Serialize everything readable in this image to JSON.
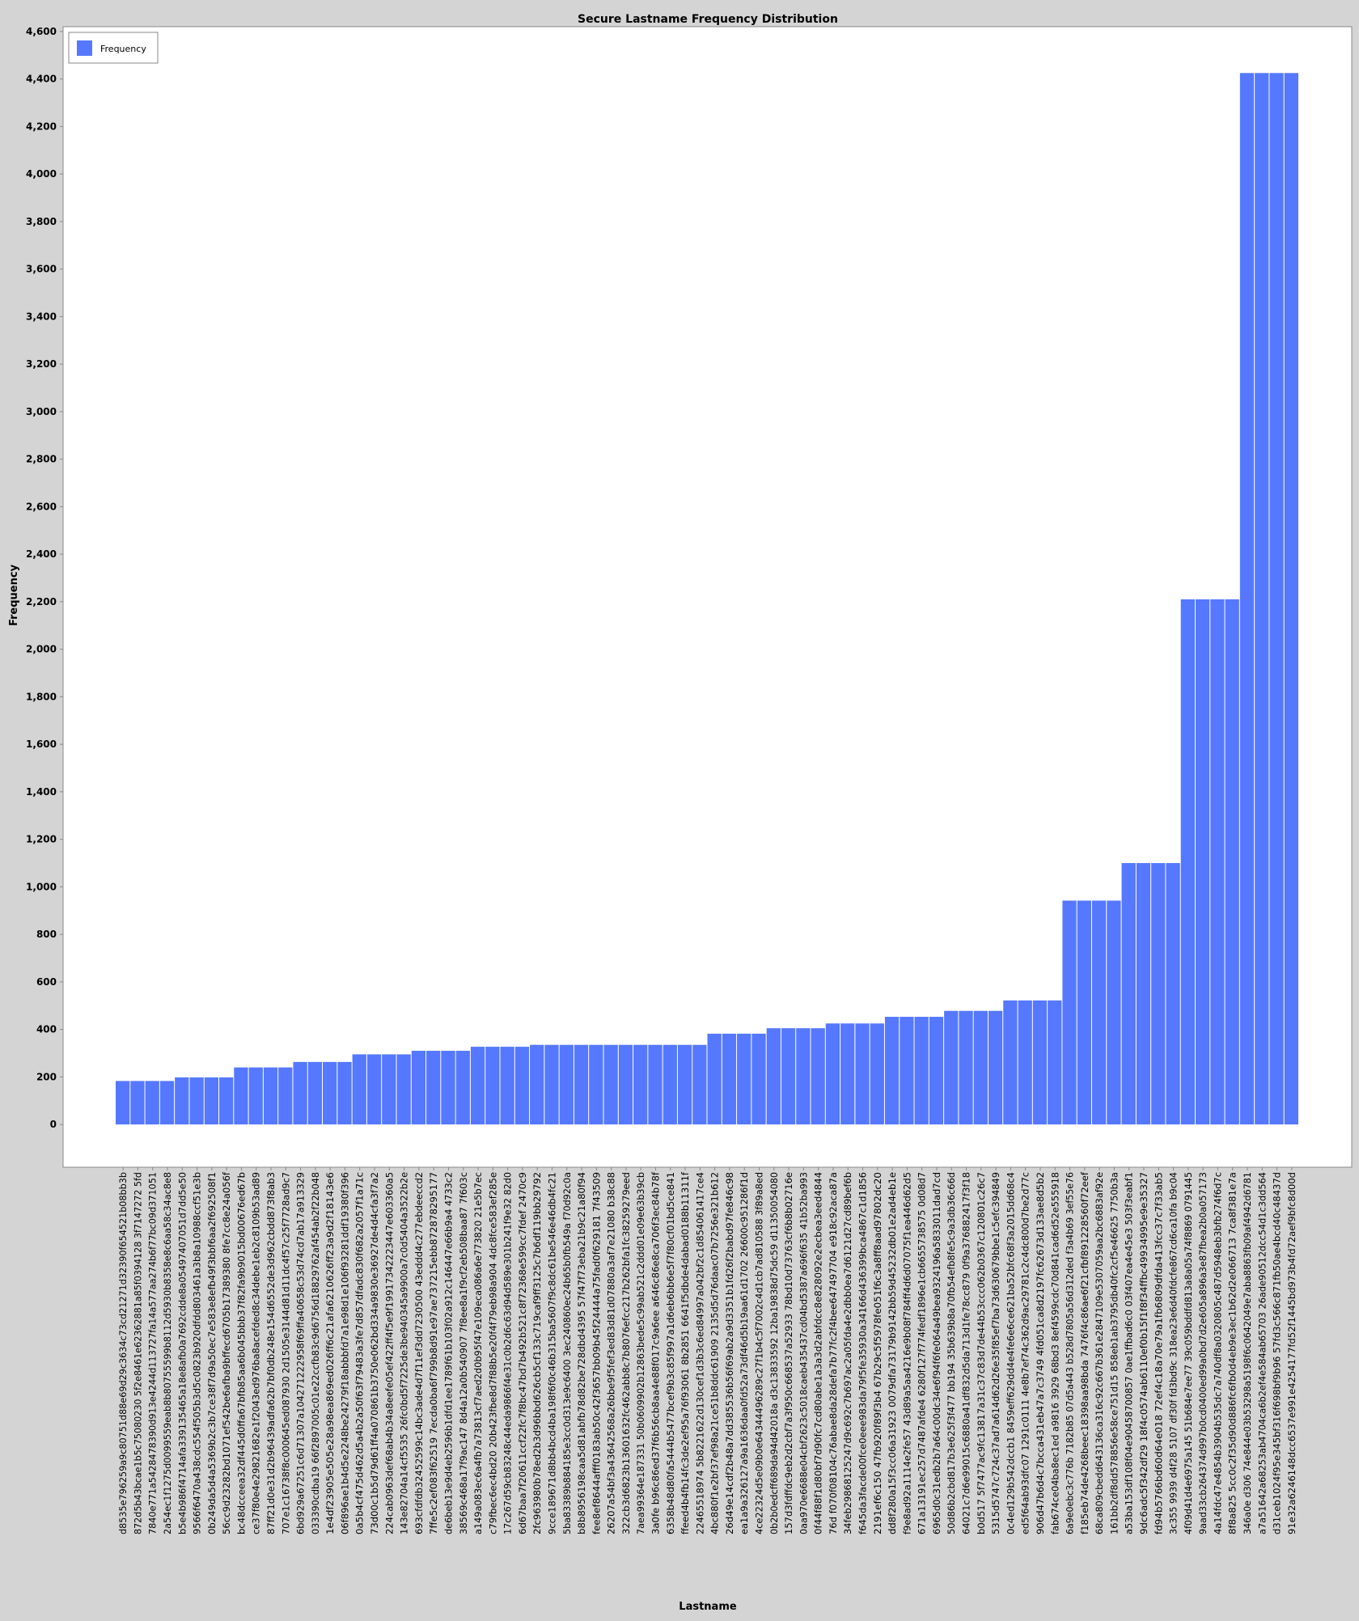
{
  "colors": {
    "background": "#d4d4d4",
    "plot_background": "#ffffff",
    "bar": "#5578ff",
    "axis": "#888888",
    "text": "#000000"
  },
  "chart_data": {
    "type": "bar",
    "title": "Secure Lastname Frequency Distribution",
    "xlabel": "Lastname",
    "ylabel": "Frequency",
    "ylim": [
      -180,
      4620
    ],
    "yticks": [
      0,
      200,
      400,
      600,
      800,
      1000,
      1200,
      1400,
      1600,
      1800,
      2000,
      2200,
      2400,
      2600,
      2800,
      3000,
      3200,
      3400,
      3600,
      3800,
      4000,
      4200,
      4400,
      4600
    ],
    "ytick_labels": [
      "0",
      "200",
      "400",
      "600",
      "800",
      "1,000",
      "1,200",
      "1,400",
      "1,600",
      "1,800",
      "2,000",
      "2,200",
      "2,400",
      "2,600",
      "2,800",
      "3,000",
      "3,200",
      "3,400",
      "3,600",
      "3,800",
      "4,000",
      "4,200",
      "4,400",
      "4,600"
    ],
    "grid": false,
    "legend": {
      "position": "top-left",
      "entries": [
        "Frequency"
      ]
    },
    "series": [
      {
        "name": "Frequency",
        "values": [
          183,
          183,
          183,
          183,
          198,
          198,
          198,
          198,
          240,
          240,
          240,
          240,
          263,
          263,
          263,
          263,
          295,
          295,
          295,
          295,
          310,
          310,
          310,
          310,
          327,
          327,
          327,
          327,
          335,
          335,
          335,
          335,
          335,
          335,
          335,
          335,
          335,
          335,
          335,
          335,
          382,
          382,
          382,
          382,
          405,
          405,
          405,
          405,
          425,
          425,
          425,
          425,
          453,
          453,
          453,
          453,
          478,
          478,
          478,
          478,
          522,
          522,
          522,
          522,
          942,
          942,
          942,
          942,
          1100,
          1100,
          1100,
          1100,
          2210,
          2210,
          2210,
          2210,
          4425,
          4425,
          4425,
          4425
        ]
      }
    ],
    "categories": [
      "d8535e796259a9c80751d88e69d29c3634c73cd21271d32390f654521b08bb3b",
      "872d5b43bcae1b5c75080230 5f2e8461e62362881a85f0394128 3f7147272 5fd",
      "7840e771a5428478390d913e4244d113727fa14a577aa274b6f77bc09d371051",
      "2a54ec1f1275d0099559eab8b80755599b8112d5930b8358e8c6aa58c34ac8e8",
      "b5e4b986f4714afa339135465a18e8afb0a7692cdde8a05497407051d7dd5e50",
      "9566f6470a438cdc554f505b3d5c0823b920dfdd803461a3b8a10988ccf51e3b",
      "0b249da5d4a5369b2c3b7ce38f7d9a50ec7e583e8efb49f3bbf6aa2f692508f1",
      "56cc9d23282bd1071ef542be6afba9bffecd6705b17389380 8fe7cc8e24a056f",
      "bc48dcceea32df445d0ffa67bfb85aa6b045bbb37f82fa9b9015bd00676ed67b",
      "ce37f80e4e29821682e1f2043ed976ba8acefded8c34debe1eb2c8109b53ad89",
      "87ff21d0e31d2b96439adfa62b7bf0db248e154d6552de3d962cbdd873f8ab3",
      "707e1c16738f8c000645ed087930 2d1505e3144d81d11dc4f57c25f7728ad9c7",
      "6bd929a67251c6d71307a104271222958f69ffa40658c53d74cd7ab17a913329",
      "033390cdba19 66f2897005c01e22ccfb83c9d6756d18829762af454ab2f22b048",
      "1e4df23905e505e28a98ea869ed026ff6c21afa6210626ff23a9d2f18143e6",
      "06f896ae1b4d5e2248be24279f18abbbfd7a1e98d1e106f93281ddf19380f396",
      "0a5b4cf475d462d5a4b2a50f63f79483a3fe7d857dfadc830f682a2057f1a71c",
      "73d00c1b5d79d61ff4a070861b3750e062bd334a9830e36927de4d4cfa3f7a2",
      "224cab0963def68ab4b34a8eefe05ef422ff4f5e9f19917342223447e603360a5",
      "143e82704a14cf5535 26fc0bd5f7225de3be940345a9900a7c0d5404a3522b2e",
      "693cfdfdb32452599c14bc3ade4d7f11ef3dd7230500 43eddd4c277ebdeeccd2",
      "7ffe5c2ef083f62519 7ecda0ba6f799b8d91e97ae737215ebb872878295177",
      "de6beb13e9d4eb2596b1dfd1ee1789f61b103f02a912c146447e66b9a4 4733c2",
      "38569c468a17f9ac147 8d4a12a0b540907 7f8ee8a1f9cf2eb508baa87 7f603c",
      "a149a083ec6a4fb7a73813cf7aed2d0b95f47e109eca086a6e773820 21e5b7ec",
      "c79fbec6ec4bd20 20b423fbe8d7f88b5e20f4f79eb98a904 4dc8fce583ef285e",
      "17c267d59cb83248c44eda9866f4e31c0b2d6c63d94d589e301b241f9e32 82d0",
      "6d67baa7f20611ccf22fc7f8bc47bd7b492b521c8f72368e599cc7fdef 2470c9",
      "2fc963980b78ed2b3d96bbd626cb5cf133c719caf9ff3125c7b6df119bb29792",
      "9cce189671d8bb4bcd4ba198f6f0c46b315ba5607f9c8dc61be546e46db4fc21",
      "5ba83389b884185e3cc0d313e9c6400 3ec240860ec24b65b0fb549a f70d92c0a",
      "b8b8956198caa5d81abfb78d82be728dbd4395 57f47f73eba21b9c21a80f94",
      "fee8ef8644afff0183ab50c42f3657bb09b45f24444a75fad0f629181 7f43509",
      "26207a54bf3a43642568a26bbe9f5fef3ed83d81d07880a3af7e21080 b38c88",
      "322cb3d6823b13601632fc462abb8c7b8076efcc217b262bfa1fc38259279eed",
      "7aea99364e187331 50b0609902b12863bede5c99ab521c2ddd01e09e63b39cb",
      "3a0fe b96c86ed37f6b56cb8aa4e88f017c9a6ee a646c86e8ca706f3ec84b78f",
      "6358b48d80fa5444b5477bcef9b3c85f997a1d6eb6bb6e5f7f80cf01bd5ce841",
      "ffeed4b4fb14fc3de2ef95a76f93061 8b2851 6641f5dbde4dabad0188b11311f",
      "22465518974 5b8221622d130cef1d3b3c6ed84997a042bf2c1d854061417ce4",
      "4bc880f1e2bf37ef98a21ce51b8ddc61909 2135d5d76daac07b7256e321b612",
      "26d49e14cdf2b48a7dd385536b56f69ab2a9d3351b1fd26f2babd97fe846c98",
      "ea1a9a326127a9a1636daa0fd52a73df46d5b19aa61d1702 26600c951286f1d",
      "4ce22324d5e09b0e64344496289c27f1b4c5f7002c4d1cb7ad810588 3f89a8ed",
      "0b2b0edcff689da94d42018a d3c13833592 12ba19838d75dc59 d11350054080",
      "157d3fdffdc9eb2d2cbf7a3f950c668537a52933 78bd10d73763cf6b8b02716e",
      "0aa970e6688e04cbf2623c5018caeb435437cd04bd5387a696f635 41b52ba993",
      "0f44f88f1d80bf7d90fc7cd80abe1a3a3d2abfdcc8e828092e2ecbea3eed4844",
      "76d f070f08104c76abae8da28defa7b77fc2f4bee647497704 e918c92aca87a",
      "34feb29868125247d9c692c7b697ac2a05fda4e2dbb0ea7d6121d27cd89bef6b",
      "f645da3facde00fce0eee983da79f5fe35930a34166d436399bca4867c1d1856",
      "2191ef6c150 47fb920f89f3b4 67b29c5f5978fe051f6c3a8ff8aad97802dc20",
      "dd8f280a15f3cc06a31923 0079dfa73179b9142bb59d45232db01e2ad4eb1e",
      "f9e8ad92a1114e2fe57 43d89a5aa4216e9b08f784ff4d6d07075f1ea446d62d5",
      "671a13191ec257d7487afde4 6280f127f774fedf1896e1cb6655738575 0d08d7",
      "6965d0c31edb2b7a64c00dc34e6f94f6fe064a49bea9324196a5833011dad7cd",
      "50d86b2cbd817b3e625f3f477 bb194 35b639b8a70fb54efb8fe5c9a3db36c66d",
      "64021c7d6e99015c6880a41df832d5da713d1fe78cc879 0f9a376882417f3f18",
      "b0d517 5f7477ac9fc13817a31c37c83d7de44b53ccc062b0367c120801c26c7",
      "5315d5747c724c37ad7a614d62d26e35f85ef7ba73d630679bbe1c5efc394849",
      "0c4ed129b542dccb1 8459eff629dd4e4fe6e6ce621ba52bfc68f3a2015dd68c4",
      "ed5f64ab93dfc07 1291c0111 4e8b7ef74c362d9ac29781c2c4dc800d7be2d77c",
      "906d47b6d4c7bcca431eb47a7c3749 4fd051ca8d2197fc62673d133ae8d5b2",
      "fab674ce04ba8ec1ed a9816 3929 68bd3 8ef4599cdc70d841cad6d52e555918",
      "6a9e0ebc3c776b 7182b85 07d5a443 b528d7805a56d312ded f3a4b69 3ef55e76",
      "f185eb74de4268beec18398aa98bda 7476f4c86ae6f21cfbf891228560f72eef",
      "68ca809cbedd643136ca316c92c667b361e2847109e5307059aa2bc6883af92e",
      "161bb2df8dd578856e58ce751d15 858eb1ab3795db40fc2cf5e46625 7750b3a",
      "a53ba153df108f04e90458700857 0ae1ffbad6c0 03f407ea4e45e3 503f3eabf1",
      "9dc6adc5f342df29 18f4c0574ab6110ef0b15f1f8f34ffbc49934995e9e35327",
      "fd94b5766bd60d64e018 72ef4c18a70e79a1fb6809dfda413fcc37c7f33ab5",
      "3c355 9939 d4f28 5107 df30f fd3bd9c 318ea23e6d40fdcfe867cd6ca10fa b9c04",
      "4f09d41d4e6975a145 51b684e7ee77 39c059bddfd813a8a05a74f8869 0791445",
      "9aad33cb264374d997b0cd0400ed99a0bd7d2e605a896a3e87fbea2b0a057173",
      "4a14fdc47e4854b3904b535dc7a740df8a0320805c487d5948eb3bfb274f6d7c",
      "8f8a825 5cc0c2f35d90d886fc6fb0d4eb9e3ec1b62d2e066713 7ca8f381e7a",
      "346a0e d306 74e844e03b53298a5198f6c0642049e7aba8863fb09af4942d6781",
      "a7a51642a68253ab4704ca6b2ef4e584ab65703 26ade90512dcc54d1c3dd564",
      "d31ceb1024f95e345bf316f698bf9b96 57fd3c566c871fb50ae4bcd40c48437d",
      "91e32a6246148dcc6537e991e4254177fd52f1445bd973b4fd72aef9bfc8d00d"
    ]
  }
}
